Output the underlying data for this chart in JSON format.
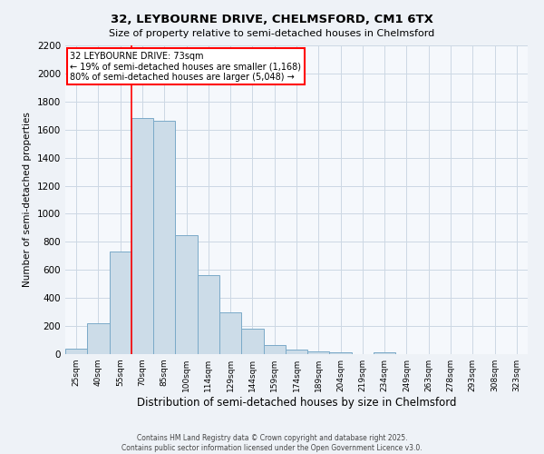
{
  "title": "32, LEYBOURNE DRIVE, CHELMSFORD, CM1 6TX",
  "subtitle": "Size of property relative to semi-detached houses in Chelmsford",
  "xlabel": "Distribution of semi-detached houses by size in Chelmsford",
  "ylabel": "Number of semi-detached properties",
  "bar_color": "#ccdce8",
  "bar_edge_color": "#7aaac8",
  "categories": [
    "25sqm",
    "40sqm",
    "55sqm",
    "70sqm",
    "85sqm",
    "100sqm",
    "114sqm",
    "129sqm",
    "144sqm",
    "159sqm",
    "174sqm",
    "189sqm",
    "204sqm",
    "219sqm",
    "234sqm",
    "249sqm",
    "263sqm",
    "278sqm",
    "293sqm",
    "308sqm",
    "323sqm"
  ],
  "values": [
    40,
    220,
    730,
    1680,
    1660,
    850,
    560,
    300,
    180,
    65,
    35,
    22,
    15,
    0,
    10,
    0,
    0,
    0,
    0,
    0,
    0
  ],
  "ylim": [
    0,
    2200
  ],
  "yticks": [
    0,
    200,
    400,
    600,
    800,
    1000,
    1200,
    1400,
    1600,
    1800,
    2000,
    2200
  ],
  "red_line_index": 3,
  "annotation_title": "32 LEYBOURNE DRIVE: 73sqm",
  "annotation_line1": "← 19% of semi-detached houses are smaller (1,168)",
  "annotation_line2": "80% of semi-detached houses are larger (5,048) →",
  "footer_line1": "Contains HM Land Registry data © Crown copyright and database right 2025.",
  "footer_line2": "Contains public sector information licensed under the Open Government Licence v3.0.",
  "background_color": "#eef2f7",
  "plot_bg_color": "#f5f8fc",
  "grid_color": "#ccd8e4"
}
